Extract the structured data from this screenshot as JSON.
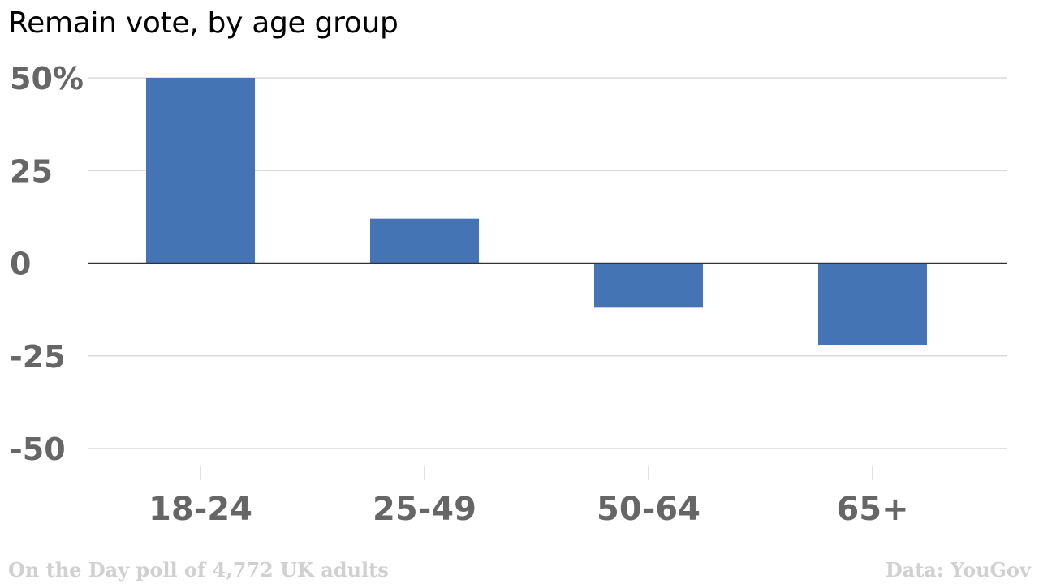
{
  "chart_data": {
    "type": "bar",
    "title": "Remain vote, by age group",
    "categories": [
      "18-24",
      "25-49",
      "50-64",
      "65+"
    ],
    "series": [
      {
        "values": [
          50,
          12,
          -12,
          -22
        ]
      }
    ],
    "ylim": [
      -50,
      50
    ],
    "yticks": [
      50,
      25,
      0,
      -25,
      -50
    ],
    "ytick_labels": [
      "50%",
      "25",
      "0",
      "-25",
      "-50"
    ],
    "xlabel": "",
    "ylabel": "",
    "grid": true,
    "colors": {
      "bar": "#4474b4",
      "grid": "#d8d8d8",
      "zero_line": "#333333",
      "tick_text": "#666666"
    }
  },
  "footer": {
    "note": "On the Day poll of 4,772 UK adults",
    "source": "Data: YouGov"
  }
}
